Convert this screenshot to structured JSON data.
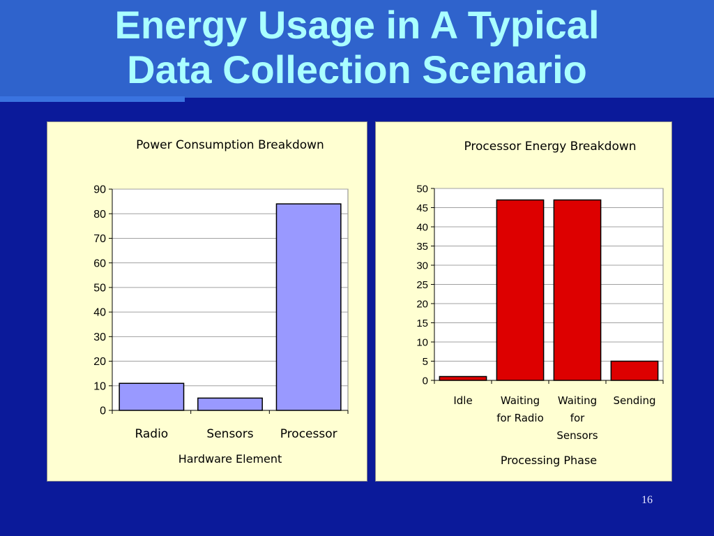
{
  "slide": {
    "title_line1": "Energy Usage in A Typical",
    "title_line2": "Data Collection Scenario",
    "page_number": "16"
  },
  "colors": {
    "background": "#0b1a9a",
    "title_band": "#2f63cc",
    "title_text": "#aaffff",
    "panel": "#ffffd2",
    "bar_left": "#9999ff",
    "bar_right": "#dd0000"
  },
  "chart_data": [
    {
      "type": "bar",
      "title": "Power Consumption Breakdown",
      "xlabel": "Hardware Element",
      "ylabel": "",
      "categories": [
        "Radio",
        "Sensors",
        "Processor"
      ],
      "category_lines": [
        [
          "Radio"
        ],
        [
          "Sensors"
        ],
        [
          "Processor"
        ]
      ],
      "values": [
        11,
        5,
        84
      ],
      "ylim": [
        0,
        90
      ],
      "yticks": [
        0,
        10,
        20,
        30,
        40,
        50,
        60,
        70,
        80,
        90
      ],
      "grid": true,
      "legend": "none",
      "bar_color": "#9999ff"
    },
    {
      "type": "bar",
      "title": "Processor Energy Breakdown",
      "xlabel": "Processing Phase",
      "ylabel": "",
      "categories": [
        "Idle",
        "Waiting for Radio",
        "Waiting for Sensors",
        "Sending"
      ],
      "category_lines": [
        [
          "Idle"
        ],
        [
          "Waiting",
          "for Radio"
        ],
        [
          "Waiting",
          "for",
          "Sensors"
        ],
        [
          "Sending"
        ]
      ],
      "values": [
        1,
        47,
        47,
        5
      ],
      "ylim": [
        0,
        50
      ],
      "yticks": [
        0,
        5,
        10,
        15,
        20,
        25,
        30,
        35,
        40,
        45,
        50
      ],
      "grid": true,
      "legend": "none",
      "bar_color": "#dd0000"
    }
  ]
}
